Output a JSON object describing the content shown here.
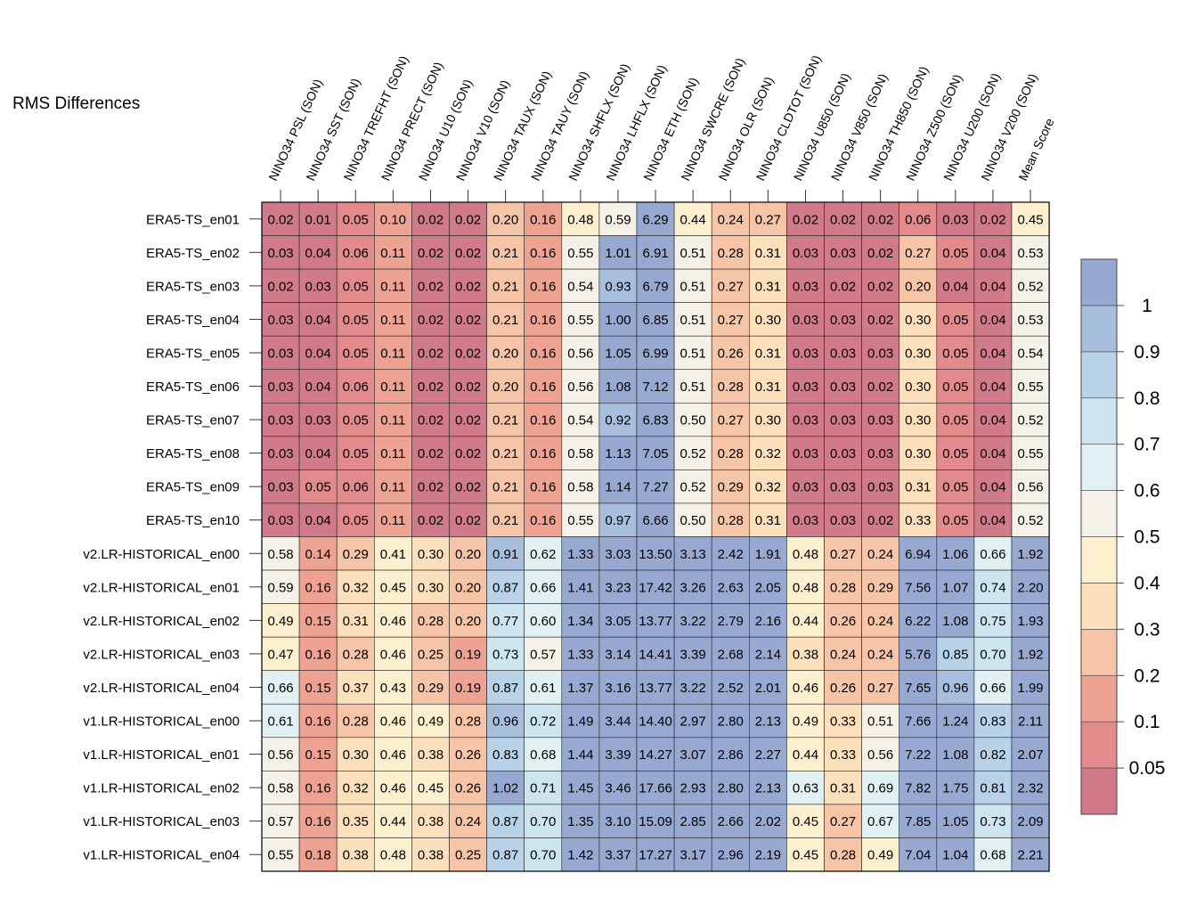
{
  "chart_data": {
    "type": "heatmap",
    "title": "RMS Differences",
    "columns": [
      "NINO34 PSL (SON)",
      "NINO34 SST (SON)",
      "NINO34 TREFHT (SON)",
      "NINO34 PRECT (SON)",
      "NINO34 U10 (SON)",
      "NINO34 V10 (SON)",
      "NINO34 TAUX (SON)",
      "NINO34 TAUY (SON)",
      "NINO34 SHFLX (SON)",
      "NINO34 LHFLX (SON)",
      "NINO34 ETH (SON)",
      "NINO34 SWCRE (SON)",
      "NINO34 OLR (SON)",
      "NINO34 CLDTOT (SON)",
      "NINO34 U850 (SON)",
      "NINO34 V850 (SON)",
      "NINO34 TH850 (SON)",
      "NINO34 Z500 (SON)",
      "NINO34 U200 (SON)",
      "NINO34 V200 (SON)",
      "Mean Score"
    ],
    "rows": [
      "ERA5-TS_en01",
      "ERA5-TS_en02",
      "ERA5-TS_en03",
      "ERA5-TS_en04",
      "ERA5-TS_en05",
      "ERA5-TS_en06",
      "ERA5-TS_en07",
      "ERA5-TS_en08",
      "ERA5-TS_en09",
      "ERA5-TS_en10",
      "v2.LR-HISTORICAL_en00",
      "v2.LR-HISTORICAL_en01",
      "v2.LR-HISTORICAL_en02",
      "v2.LR-HISTORICAL_en03",
      "v2.LR-HISTORICAL_en04",
      "v1.LR-HISTORICAL_en00",
      "v1.LR-HISTORICAL_en01",
      "v1.LR-HISTORICAL_en02",
      "v1.LR-HISTORICAL_en03",
      "v1.LR-HISTORICAL_en04"
    ],
    "values": [
      [
        "0.02",
        "0.01",
        "0.05",
        "0.10",
        "0.02",
        "0.02",
        "0.20",
        "0.16",
        "0.48",
        "0.59",
        "6.29",
        "0.44",
        "0.24",
        "0.27",
        "0.02",
        "0.02",
        "0.02",
        "0.06",
        "0.03",
        "0.02",
        "0.45"
      ],
      [
        "0.03",
        "0.04",
        "0.06",
        "0.11",
        "0.02",
        "0.02",
        "0.21",
        "0.16",
        "0.55",
        "1.01",
        "6.91",
        "0.51",
        "0.28",
        "0.31",
        "0.03",
        "0.03",
        "0.02",
        "0.27",
        "0.05",
        "0.04",
        "0.53"
      ],
      [
        "0.02",
        "0.03",
        "0.05",
        "0.11",
        "0.02",
        "0.02",
        "0.21",
        "0.16",
        "0.54",
        "0.93",
        "6.79",
        "0.51",
        "0.27",
        "0.31",
        "0.03",
        "0.02",
        "0.02",
        "0.20",
        "0.04",
        "0.04",
        "0.52"
      ],
      [
        "0.03",
        "0.04",
        "0.05",
        "0.11",
        "0.02",
        "0.02",
        "0.21",
        "0.16",
        "0.55",
        "1.00",
        "6.85",
        "0.51",
        "0.27",
        "0.30",
        "0.03",
        "0.03",
        "0.02",
        "0.30",
        "0.05",
        "0.04",
        "0.53"
      ],
      [
        "0.03",
        "0.04",
        "0.05",
        "0.11",
        "0.02",
        "0.02",
        "0.20",
        "0.16",
        "0.56",
        "1.05",
        "6.99",
        "0.51",
        "0.26",
        "0.31",
        "0.03",
        "0.03",
        "0.03",
        "0.30",
        "0.05",
        "0.04",
        "0.54"
      ],
      [
        "0.03",
        "0.04",
        "0.06",
        "0.11",
        "0.02",
        "0.02",
        "0.20",
        "0.16",
        "0.56",
        "1.08",
        "7.12",
        "0.51",
        "0.28",
        "0.31",
        "0.03",
        "0.03",
        "0.02",
        "0.30",
        "0.05",
        "0.04",
        "0.55"
      ],
      [
        "0.03",
        "0.03",
        "0.05",
        "0.11",
        "0.02",
        "0.02",
        "0.21",
        "0.16",
        "0.54",
        "0.92",
        "6.83",
        "0.50",
        "0.27",
        "0.30",
        "0.03",
        "0.03",
        "0.03",
        "0.30",
        "0.05",
        "0.04",
        "0.52"
      ],
      [
        "0.03",
        "0.04",
        "0.05",
        "0.11",
        "0.02",
        "0.02",
        "0.21",
        "0.16",
        "0.58",
        "1.13",
        "7.05",
        "0.52",
        "0.28",
        "0.32",
        "0.03",
        "0.03",
        "0.03",
        "0.30",
        "0.05",
        "0.04",
        "0.55"
      ],
      [
        "0.03",
        "0.05",
        "0.06",
        "0.11",
        "0.02",
        "0.02",
        "0.21",
        "0.16",
        "0.58",
        "1.14",
        "7.27",
        "0.52",
        "0.29",
        "0.32",
        "0.03",
        "0.03",
        "0.03",
        "0.31",
        "0.05",
        "0.04",
        "0.56"
      ],
      [
        "0.03",
        "0.04",
        "0.05",
        "0.11",
        "0.02",
        "0.02",
        "0.21",
        "0.16",
        "0.55",
        "0.97",
        "6.66",
        "0.50",
        "0.28",
        "0.31",
        "0.03",
        "0.03",
        "0.02",
        "0.33",
        "0.05",
        "0.04",
        "0.52"
      ],
      [
        "0.58",
        "0.14",
        "0.29",
        "0.41",
        "0.30",
        "0.20",
        "0.91",
        "0.62",
        "1.33",
        "3.03",
        "13.50",
        "3.13",
        "2.42",
        "1.91",
        "0.48",
        "0.27",
        "0.24",
        "6.94",
        "1.06",
        "0.66",
        "1.92"
      ],
      [
        "0.59",
        "0.16",
        "0.32",
        "0.45",
        "0.30",
        "0.20",
        "0.87",
        "0.66",
        "1.41",
        "3.23",
        "17.42",
        "3.26",
        "2.63",
        "2.05",
        "0.48",
        "0.28",
        "0.29",
        "7.56",
        "1.07",
        "0.74",
        "2.20"
      ],
      [
        "0.49",
        "0.15",
        "0.31",
        "0.46",
        "0.28",
        "0.20",
        "0.77",
        "0.60",
        "1.34",
        "3.05",
        "13.77",
        "3.22",
        "2.79",
        "2.16",
        "0.44",
        "0.26",
        "0.24",
        "6.22",
        "1.08",
        "0.75",
        "1.93"
      ],
      [
        "0.47",
        "0.16",
        "0.28",
        "0.46",
        "0.25",
        "0.19",
        "0.73",
        "0.57",
        "1.33",
        "3.14",
        "14.41",
        "3.39",
        "2.68",
        "2.14",
        "0.38",
        "0.24",
        "0.24",
        "5.76",
        "0.85",
        "0.70",
        "1.92"
      ],
      [
        "0.66",
        "0.15",
        "0.37",
        "0.43",
        "0.29",
        "0.19",
        "0.87",
        "0.61",
        "1.37",
        "3.16",
        "13.77",
        "3.22",
        "2.52",
        "2.01",
        "0.46",
        "0.26",
        "0.27",
        "7.65",
        "0.96",
        "0.66",
        "1.99"
      ],
      [
        "0.61",
        "0.16",
        "0.28",
        "0.46",
        "0.49",
        "0.28",
        "0.96",
        "0.72",
        "1.49",
        "3.44",
        "14.40",
        "2.97",
        "2.80",
        "2.13",
        "0.49",
        "0.33",
        "0.51",
        "7.66",
        "1.24",
        "0.83",
        "2.11"
      ],
      [
        "0.56",
        "0.15",
        "0.30",
        "0.46",
        "0.38",
        "0.26",
        "0.83",
        "0.68",
        "1.44",
        "3.39",
        "14.27",
        "3.07",
        "2.86",
        "2.27",
        "0.44",
        "0.33",
        "0.56",
        "7.22",
        "1.08",
        "0.82",
        "2.07"
      ],
      [
        "0.58",
        "0.16",
        "0.32",
        "0.46",
        "0.45",
        "0.26",
        "1.02",
        "0.71",
        "1.45",
        "3.46",
        "17.66",
        "2.93",
        "2.80",
        "2.13",
        "0.63",
        "0.31",
        "0.69",
        "7.82",
        "1.75",
        "0.81",
        "2.32"
      ],
      [
        "0.57",
        "0.16",
        "0.35",
        "0.44",
        "0.38",
        "0.24",
        "0.87",
        "0.70",
        "1.35",
        "3.10",
        "15.09",
        "2.85",
        "2.66",
        "2.02",
        "0.45",
        "0.27",
        "0.67",
        "7.85",
        "1.05",
        "0.73",
        "2.09"
      ],
      [
        "0.55",
        "0.18",
        "0.38",
        "0.48",
        "0.38",
        "0.25",
        "0.87",
        "0.70",
        "1.42",
        "3.37",
        "17.27",
        "3.17",
        "2.96",
        "2.19",
        "0.45",
        "0.28",
        "0.49",
        "7.04",
        "1.04",
        "0.68",
        "2.21"
      ]
    ],
    "colorbar": {
      "tick_labels": [
        "0.05",
        "0.1",
        "0.2",
        "0.3",
        "0.4",
        "0.5",
        "0.6",
        "0.7",
        "0.8",
        "0.9",
        "1"
      ],
      "bounds": [
        0.0,
        0.05,
        0.1,
        0.2,
        0.3,
        0.4,
        0.5,
        0.6,
        0.7,
        0.8,
        0.9,
        1.0,
        99
      ],
      "colors": [
        "#d17a8a",
        "#e28a8c",
        "#eda292",
        "#f6c4a6",
        "#fce0bc",
        "#fdf0cf",
        "#f4f2e8",
        "#e0f0f3",
        "#cde5ef",
        "#b8d3e7",
        "#a8bedd",
        "#98a9d1"
      ]
    }
  }
}
